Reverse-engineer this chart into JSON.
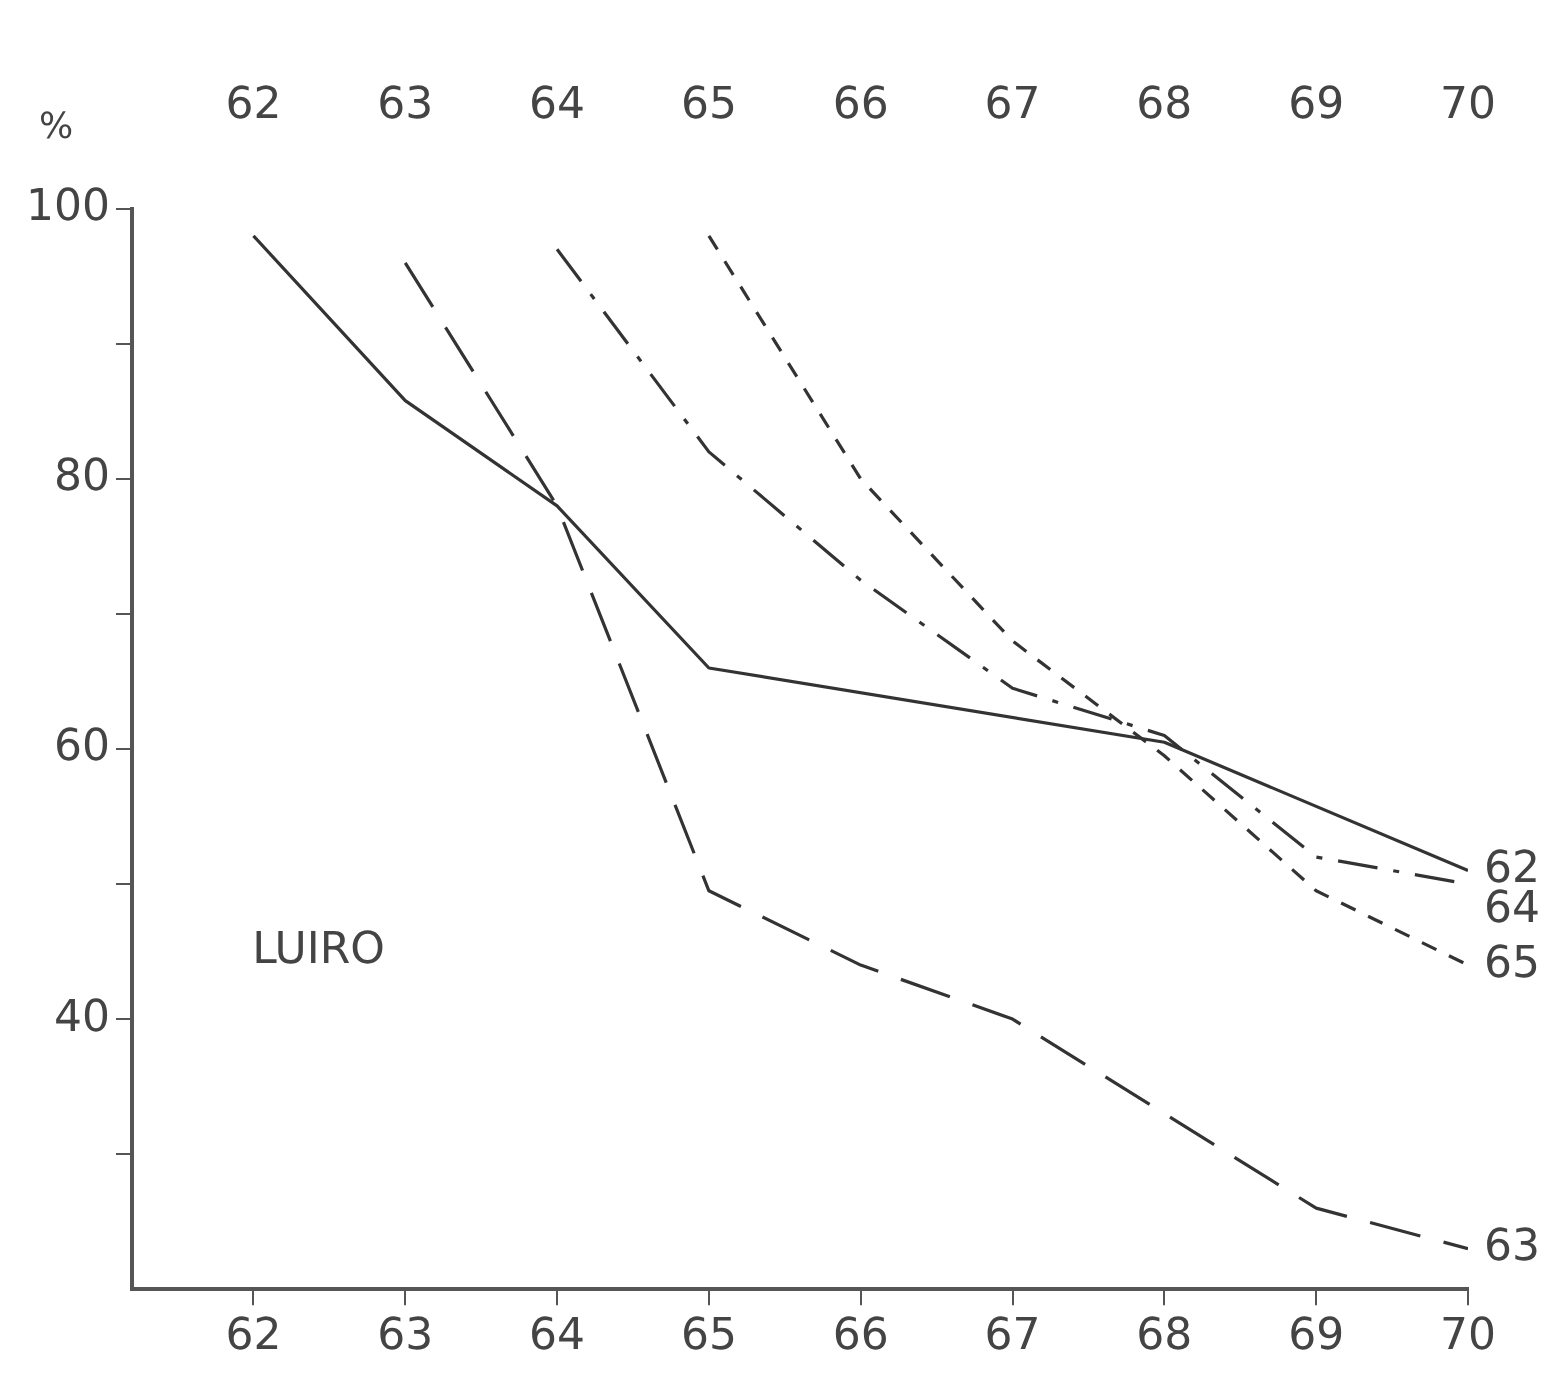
{
  "chart_data": {
    "type": "line",
    "ylabel": "%",
    "annotations": [
      "LUIRO"
    ],
    "xlim": [
      61.2,
      70
    ],
    "xticks": [
      62,
      63,
      64,
      65,
      66,
      67,
      68,
      69,
      70
    ],
    "x2lim": [
      61.2,
      70
    ],
    "x2ticks": [
      62,
      63,
      64,
      65,
      66,
      67,
      68,
      69,
      70
    ],
    "ylim": [
      20,
      100
    ],
    "yticks": [
      {
        "value": 30,
        "label": null
      },
      40,
      {
        "value": 50,
        "label": null
      },
      60,
      {
        "value": 70,
        "label": null
      },
      80,
      {
        "value": 90,
        "label": null
      },
      100
    ],
    "grid": false,
    "legend": false,
    "marker": "none",
    "series": [
      {
        "name": "62",
        "color": "#333333",
        "line_style": "solid",
        "x": [
          62,
          63,
          64,
          65,
          68,
          70
        ],
        "values": [
          98,
          85.8,
          78,
          66,
          60.5,
          51
        ]
      },
      {
        "name": "63",
        "color": "#333333",
        "line_style": "dashed",
        "x": [
          63,
          64,
          65,
          66,
          67,
          68,
          69,
          70
        ],
        "values": [
          96,
          78,
          49.5,
          44,
          40,
          33,
          26,
          23
        ]
      },
      {
        "name": "64",
        "color": "#333333",
        "line_style": "dashdot",
        "x": [
          64,
          65,
          66,
          67,
          68,
          69,
          70
        ],
        "values": [
          97,
          82,
          72.5,
          64.5,
          61,
          52,
          50
        ]
      },
      {
        "name": "65",
        "color": "#333333",
        "line_style": "dotted",
        "x": [
          65,
          66,
          67,
          68,
          69,
          70
        ],
        "values": [
          98,
          80,
          68,
          59.5,
          49.5,
          44
        ]
      }
    ]
  }
}
